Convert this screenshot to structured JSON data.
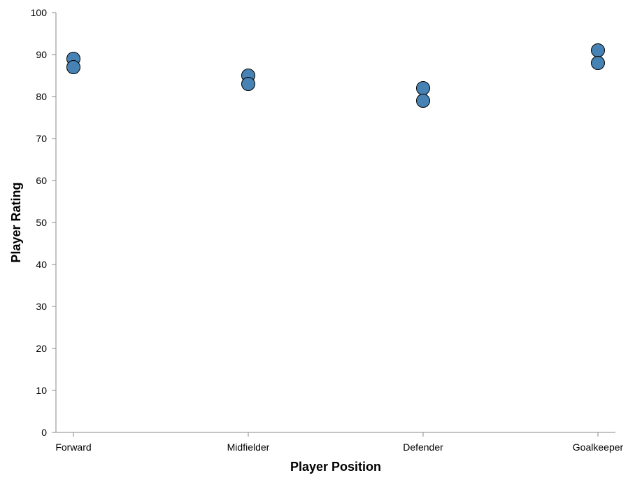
{
  "chart_data": {
    "type": "scatter",
    "title": "",
    "xlabel": "Player Position",
    "ylabel": "Player Rating",
    "categories": [
      "Forward",
      "Midfielder",
      "Defender",
      "Goalkeeper"
    ],
    "ylim": [
      0,
      100
    ],
    "yticks": [
      0,
      10,
      20,
      30,
      40,
      50,
      60,
      70,
      80,
      90,
      100
    ],
    "grid": false,
    "point_color": "#4682b4",
    "points": [
      {
        "category": "Forward",
        "value": 89
      },
      {
        "category": "Forward",
        "value": 87
      },
      {
        "category": "Midfielder",
        "value": 85
      },
      {
        "category": "Midfielder",
        "value": 83
      },
      {
        "category": "Defender",
        "value": 82
      },
      {
        "category": "Defender",
        "value": 79
      },
      {
        "category": "Goalkeeper",
        "value": 91
      },
      {
        "category": "Goalkeeper",
        "value": 88
      }
    ]
  }
}
